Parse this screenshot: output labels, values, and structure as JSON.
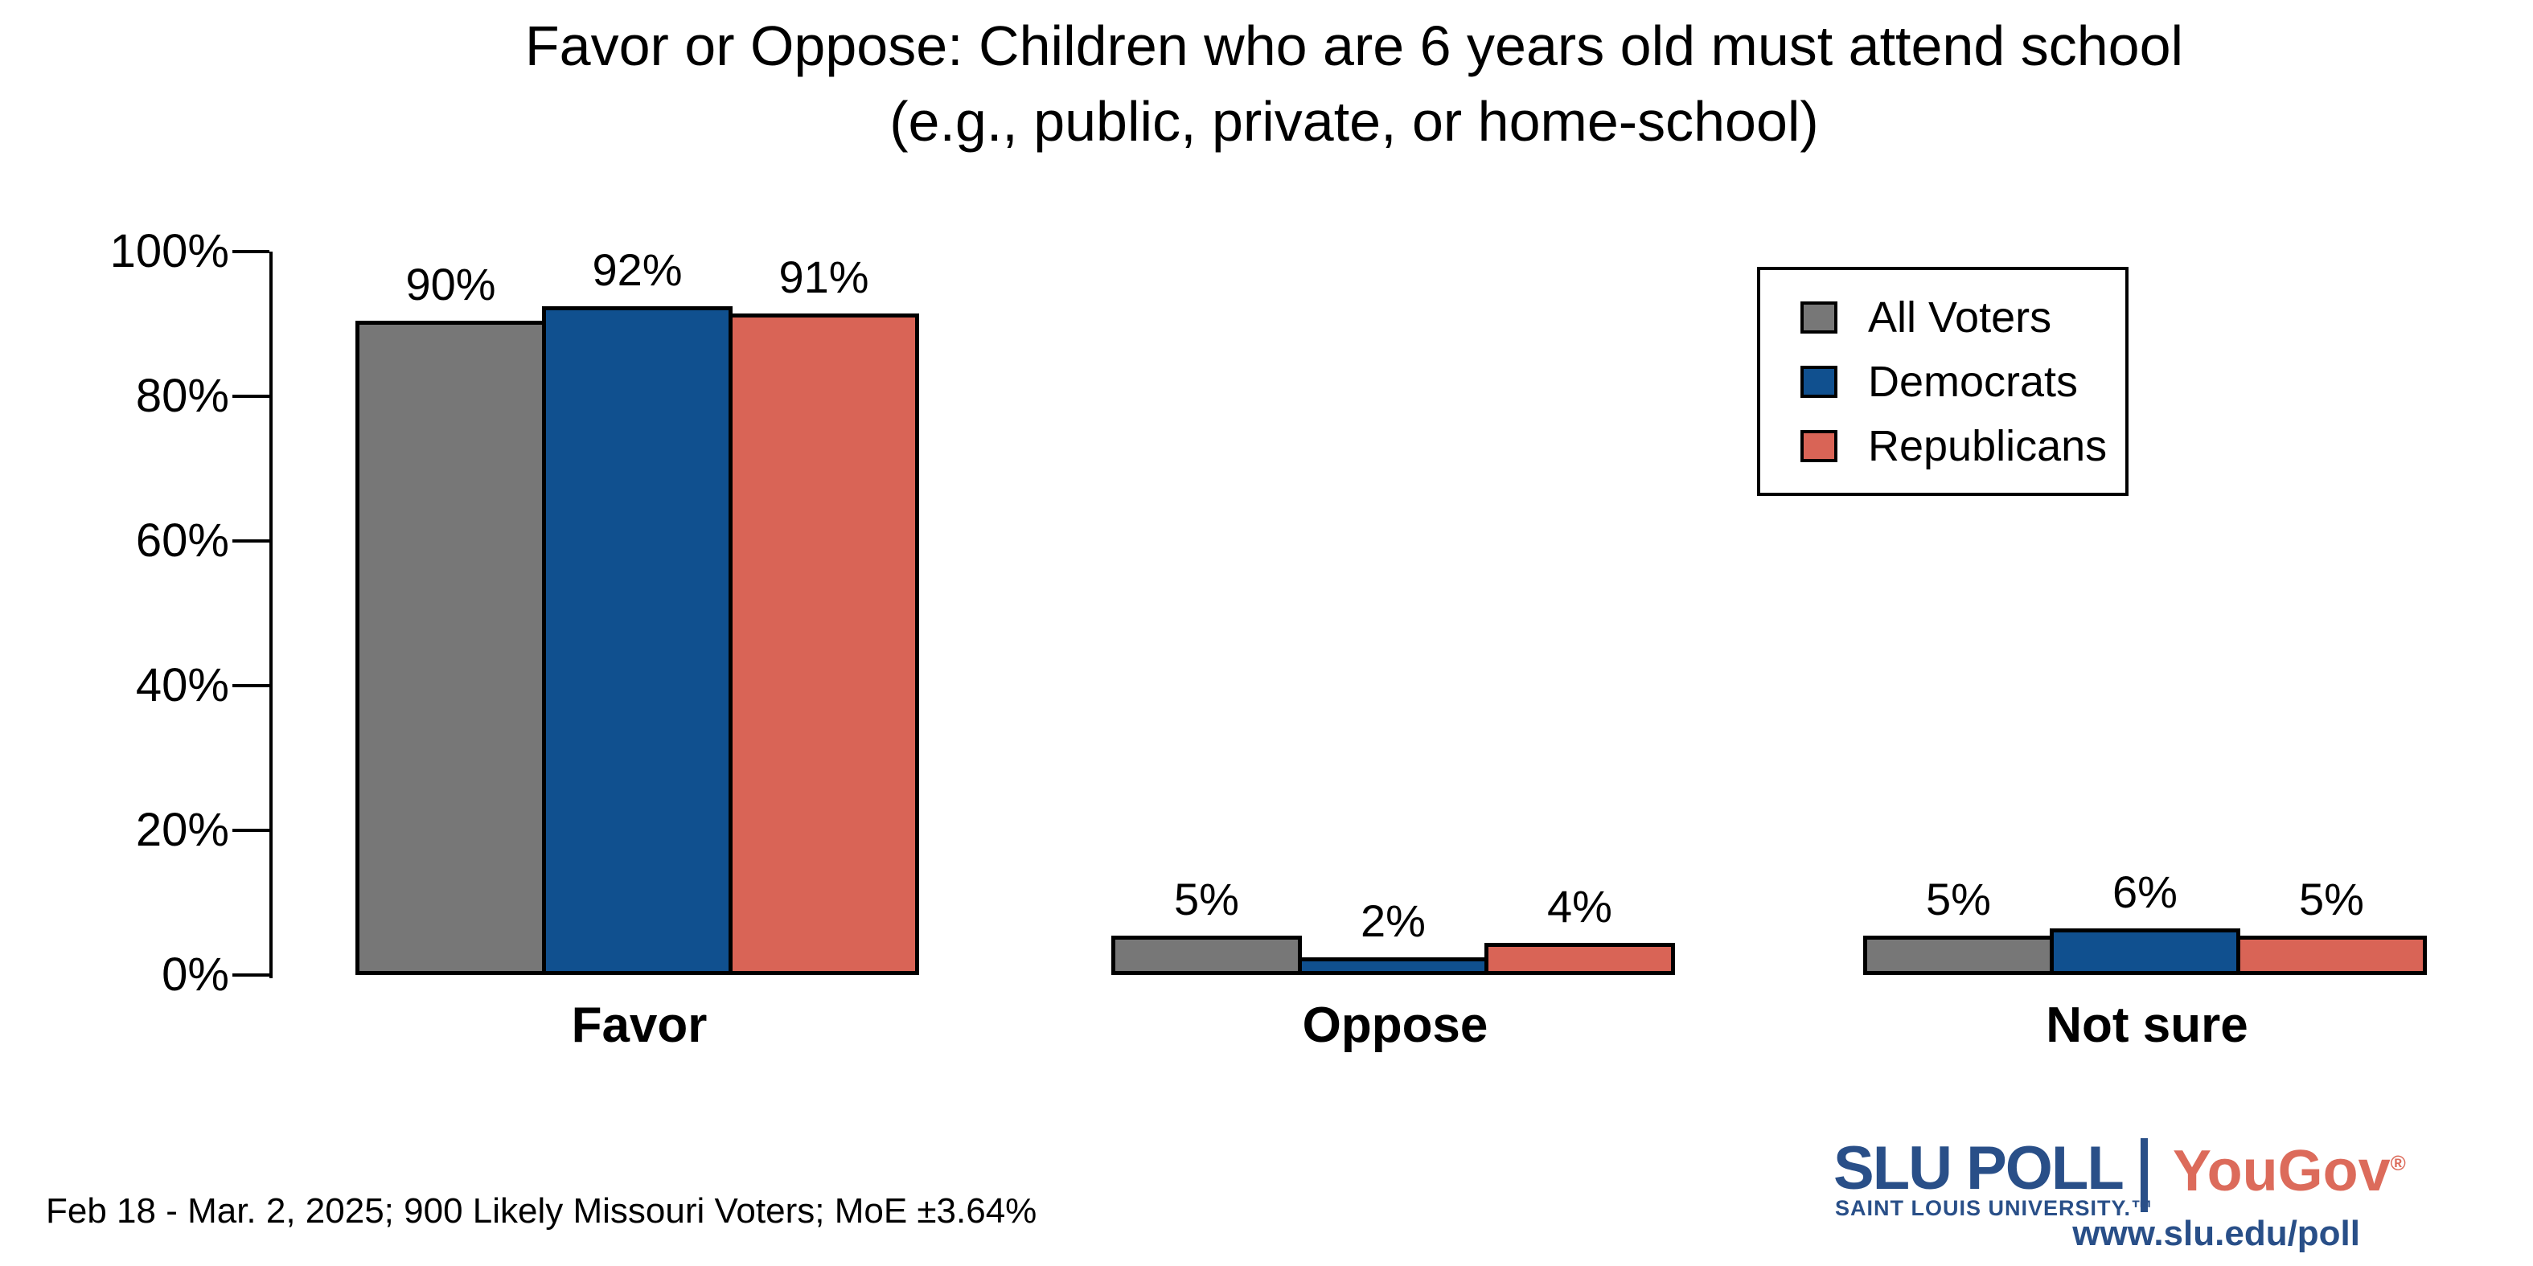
{
  "title": {
    "line1": "Favor or Oppose: Children who are 6 years old must attend school",
    "line2": "(e.g., public, private, or home-school)"
  },
  "y_axis": {
    "ticks": [
      "100%",
      "80%",
      "60%",
      "40%",
      "20%",
      "0%"
    ]
  },
  "legend": {
    "items": [
      {
        "label": "All Voters",
        "color": "#777777"
      },
      {
        "label": "Democrats",
        "color": "#10508F"
      },
      {
        "label": "Republicans",
        "color": "#D96456"
      }
    ]
  },
  "chart_data": {
    "type": "bar",
    "title": "Favor or Oppose: Children who are 6 years old must attend school (e.g., public, private, or home-school)",
    "categories": [
      "Favor",
      "Oppose",
      "Not sure"
    ],
    "series": [
      {
        "name": "All Voters",
        "color": "#777777",
        "values": [
          90,
          5,
          5
        ]
      },
      {
        "name": "Democrats",
        "color": "#10508F",
        "values": [
          92,
          2,
          6
        ]
      },
      {
        "name": "Republicans",
        "color": "#D96456",
        "values": [
          91,
          4,
          5
        ]
      }
    ],
    "value_labels": [
      [
        "90%",
        "5%",
        "5%"
      ],
      [
        "92%",
        "2%",
        "6%"
      ],
      [
        "91%",
        "4%",
        "5%"
      ]
    ],
    "xlabel": "",
    "ylabel": "",
    "ylim": [
      0,
      100
    ],
    "yticks": [
      0,
      20,
      40,
      60,
      80,
      100
    ],
    "grid": false,
    "legend_position": "top-right",
    "bar_outline_color": "#000000"
  },
  "footer": {
    "note": "Feb 18 - Mar. 2, 2025; 900 Likely Missouri Voters; MoE ±3.64%",
    "slu_wordmark": "SLU POLL",
    "slu_subtext": "SAINT LOUIS UNIVERSITY.™",
    "yougov_wordmark": "YouGov",
    "yougov_reg": "®",
    "url": "www.slu.edu/poll"
  }
}
